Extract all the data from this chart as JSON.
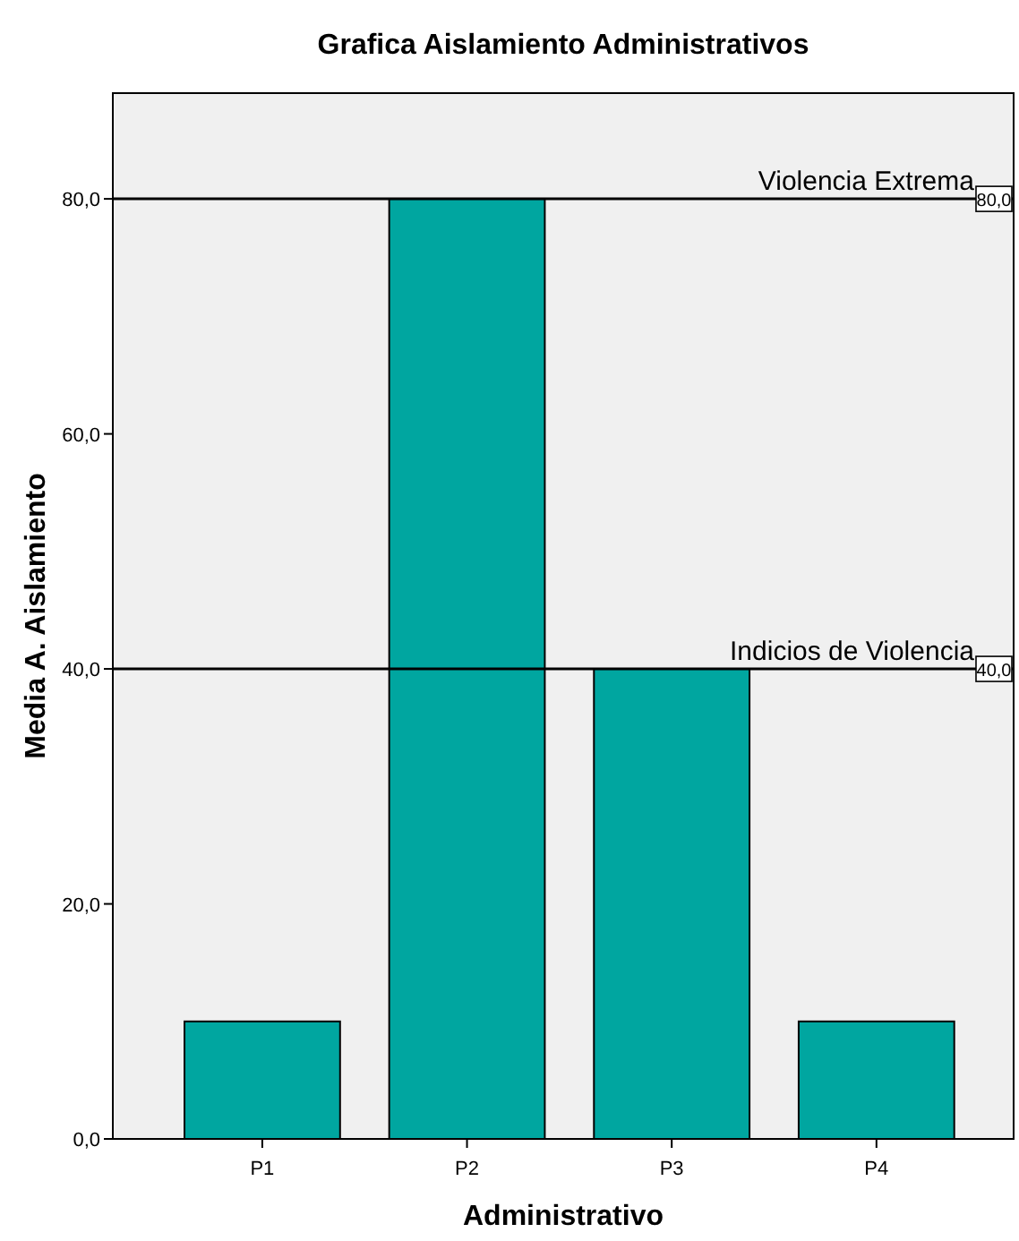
{
  "chart_data": {
    "type": "bar",
    "title": "Grafica Aislamiento Administrativos",
    "xlabel": "Administrativo",
    "ylabel": "Media A. Aislamiento",
    "categories": [
      "P1",
      "P2",
      "P3",
      "P4"
    ],
    "values": [
      10,
      80,
      40,
      10
    ],
    "color": "#00a6a0",
    "ylim": [
      0,
      89
    ],
    "yticks": [
      {
        "value": 0,
        "label": "0,0"
      },
      {
        "value": 20,
        "label": "20,0"
      },
      {
        "value": 40,
        "label": "40,0"
      },
      {
        "value": 60,
        "label": "60,0"
      },
      {
        "value": 80,
        "label": "80,0"
      }
    ],
    "grid": false,
    "ref_lines": [
      {
        "axis": "y",
        "value": 80,
        "label": "Violencia Extrema",
        "color": "#000000"
      },
      {
        "axis": "y",
        "value": 40,
        "label": "Indicios de Violencia",
        "color": "#000000"
      }
    ],
    "annotations": [
      {
        "text": "80,0",
        "y": 80
      },
      {
        "text": "40,0",
        "y": 40
      }
    ]
  }
}
